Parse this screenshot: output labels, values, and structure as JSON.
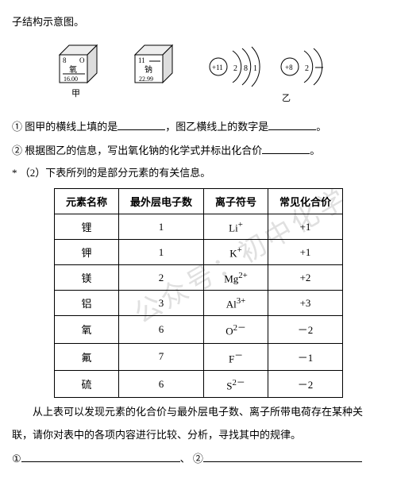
{
  "intro": {
    "prefix": "子结构示意图。"
  },
  "boxes": {
    "left": {
      "tl": "8",
      "tr": "O",
      "mid": "氧",
      "bot": "16.00",
      "caption": "甲"
    },
    "right": {
      "tl": "11",
      "mid": "钠",
      "bot": "22.99"
    }
  },
  "atoms": {
    "a": {
      "nucleus": "+11",
      "shells": [
        "2",
        "8",
        "1"
      ]
    },
    "b": {
      "nucleus": "+8",
      "shells": [
        "2"
      ]
    },
    "caption": "乙"
  },
  "q1": {
    "circle1": "①",
    "part1a": " 图甲的横线上填的是",
    "part1b": "，图乙横线上的数字是",
    "period1": "。",
    "circle2": "②",
    "part2a": " 根据图乙的信息，写出氧化钠的化学式并标出化合价",
    "period2": "。"
  },
  "q2": {
    "star": "*",
    "head": "（2）下表所列的是部分元素的有关信息。"
  },
  "table": {
    "headers": [
      "元素名称",
      "最外层电子数",
      "离子符号",
      "常见化合价"
    ],
    "rows": [
      [
        "锂",
        "1",
        "Li",
        "+",
        "+1"
      ],
      [
        "钾",
        "1",
        "K",
        "+",
        "+1"
      ],
      [
        "镁",
        "2",
        "Mg",
        "2+",
        "+2"
      ],
      [
        "铝",
        "3",
        "Al",
        "3+",
        "+3"
      ],
      [
        "氧",
        "6",
        "O",
        "2－",
        "－2"
      ],
      [
        "氟",
        "7",
        "F",
        "－",
        "－1"
      ],
      [
        "硫",
        "6",
        "S",
        "2－",
        "－2"
      ]
    ]
  },
  "bottom": {
    "l1": "　　从上表可以发现元素的化合价与最外层电子数、离子所带电荷存在某种关",
    "l2": "联，请你对表中的各项内容进行比较、分析，寻找其中的规律。",
    "circ1": "①",
    "sep": "、",
    "circ2": "②"
  },
  "watermark": "公众号：初中化学"
}
